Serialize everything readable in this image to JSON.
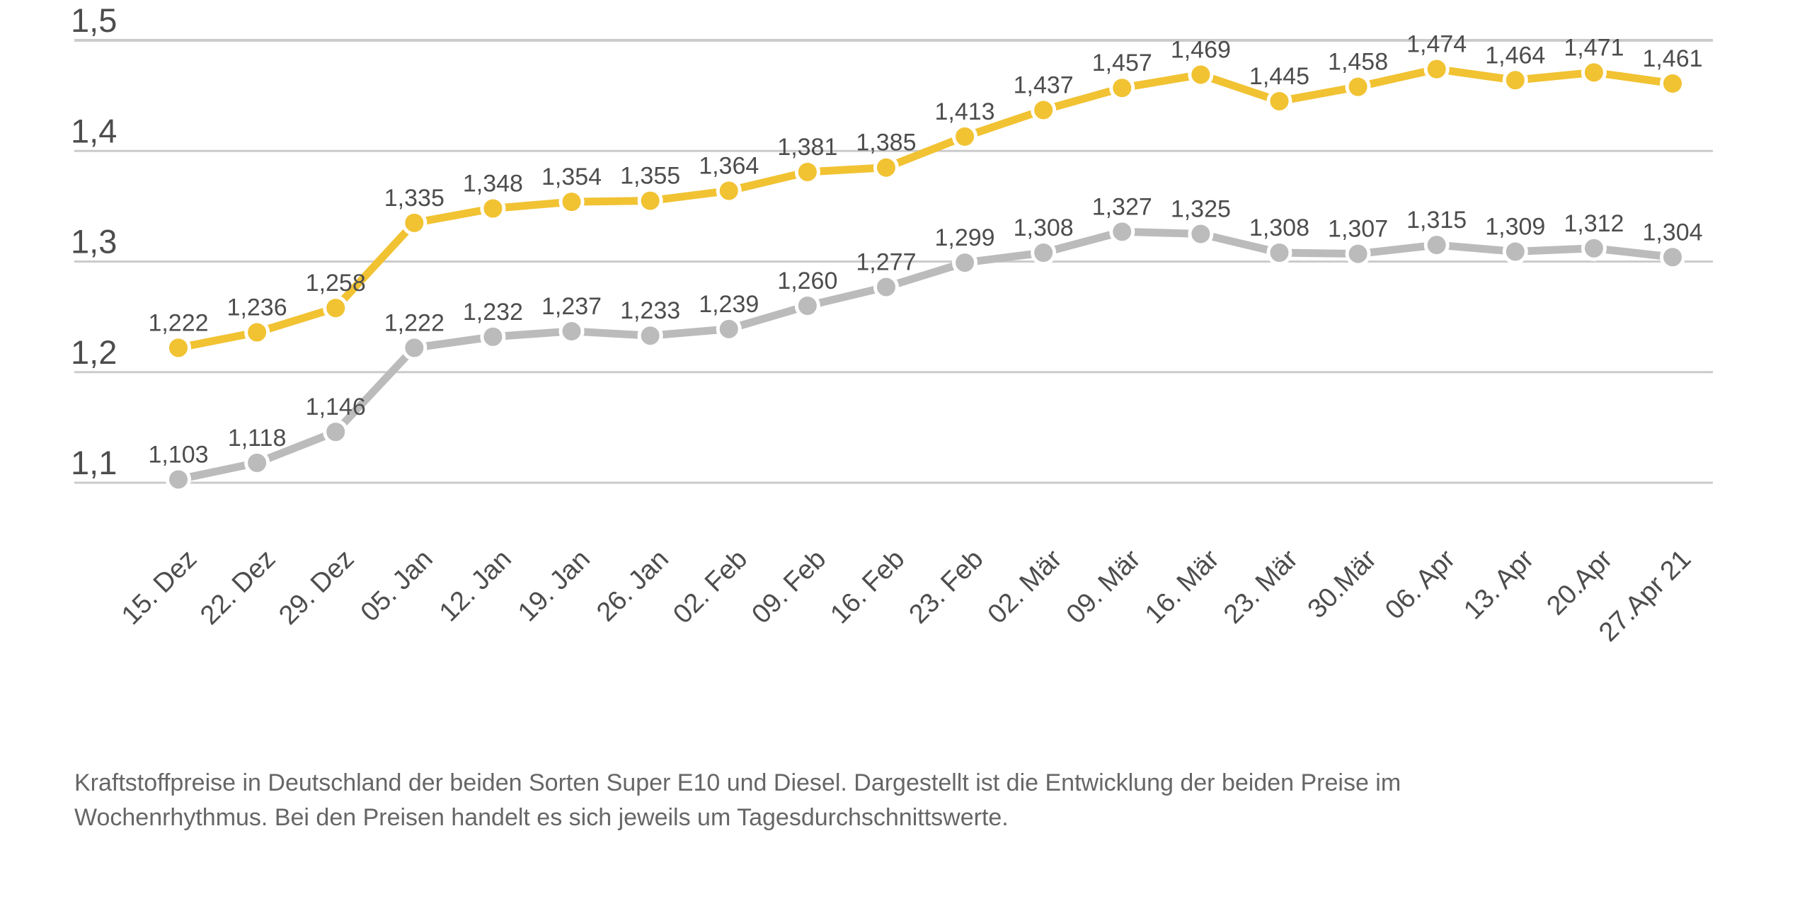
{
  "chart_data": {
    "type": "line",
    "title": "",
    "categories": [
      "15. Dez",
      "22. Dez",
      "29. Dez",
      "05. Jan",
      "12. Jan",
      "19. Jan",
      "26. Jan",
      "02. Feb",
      "09. Feb",
      "16. Feb",
      "23. Feb",
      "02. Mär",
      "09. Mär",
      "16. Mär",
      "23. Mär",
      "30.Mär",
      "06. Apr",
      "13. Apr",
      "20.Apr",
      "27.Apr 21"
    ],
    "series": [
      {
        "name": "Diesel",
        "color": "#bbbbbb",
        "values": [
          1.103,
          1.118,
          1.146,
          1.222,
          1.232,
          1.237,
          1.233,
          1.239,
          1.26,
          1.277,
          1.299,
          1.308,
          1.327,
          1.325,
          1.308,
          1.307,
          1.315,
          1.309,
          1.312,
          1.304
        ],
        "labels": [
          "1,103",
          "1,118",
          "1,146",
          "1,222",
          "1,232",
          "1,237",
          "1,233",
          "1,239",
          "1,260",
          "1,277",
          "1,299",
          "1,308",
          "1,327",
          "1,325",
          "1,308",
          "1,307",
          "1,315",
          "1,309",
          "1,312",
          "1,304"
        ]
      },
      {
        "name": "Super E10",
        "color": "#f1c232",
        "values": [
          1.222,
          1.236,
          1.258,
          1.335,
          1.348,
          1.354,
          1.355,
          1.364,
          1.381,
          1.385,
          1.413,
          1.437,
          1.457,
          1.469,
          1.445,
          1.458,
          1.474,
          1.464,
          1.471,
          1.461
        ],
        "labels": [
          "1,222",
          "1,236",
          "1,258",
          "1,335",
          "1,348",
          "1,354",
          "1,355",
          "1,364",
          "1,381",
          "1,385",
          "1,413",
          "1,437",
          "1,457",
          "1,469",
          "1,445",
          "1,458",
          "1,474",
          "1,464",
          "1,471",
          "1,461"
        ]
      }
    ],
    "y_ticks": [
      {
        "value": 1.5,
        "label": "1,5"
      },
      {
        "value": 1.4,
        "label": "1,4"
      },
      {
        "value": 1.3,
        "label": "1,3"
      },
      {
        "value": 1.2,
        "label": "1,2"
      },
      {
        "value": 1.1,
        "label": "1,1"
      }
    ],
    "ylim": [
      1.1,
      1.5
    ],
    "xlabel": "",
    "ylabel": "",
    "grid": "horizontal",
    "legend": "none",
    "decimal_separator": ",",
    "grid_color": "#cbcbcb",
    "tick_text_color": "#4d4d4d"
  },
  "caption": {
    "line1": "Kraftstoffpreise in Deutschland der beiden Sorten Super E10 und Diesel. Dargestellt ist die Entwicklung der beiden Preise im",
    "line2": "Wochenrhythmus. Bei den Preisen handelt es sich jeweils um Tagesdurchschnittswerte."
  }
}
